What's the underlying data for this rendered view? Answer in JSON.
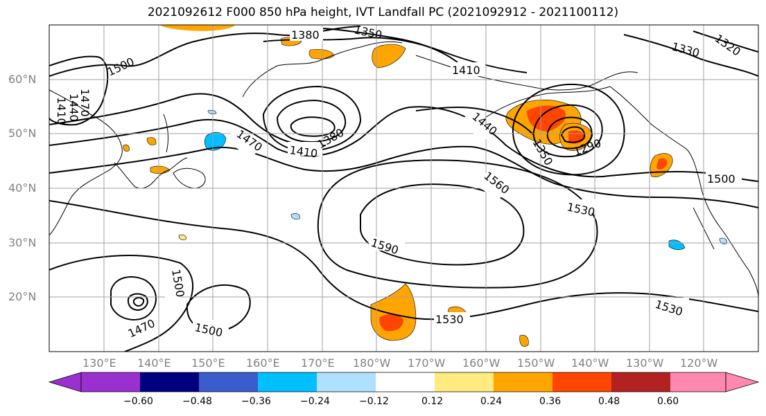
{
  "title": "2021092612 F000 850 hPa height, IVT Landfall PC (2021092912 - 2021100112)",
  "lat_labels": [
    "60°N",
    "50°N",
    "40°N",
    "30°N",
    "20°N"
  ],
  "lon_labels": [
    "130°E",
    "140°E",
    "150°E",
    "160°E",
    "170°E",
    "180°W",
    "170°W",
    "160°W",
    "150°W",
    "140°W",
    "130°W",
    "120°W"
  ],
  "contour_labels": [
    "1380",
    "1350",
    "1330",
    "1320",
    "1410",
    "1500",
    "1470",
    "1440",
    "1410",
    "1470",
    "1410",
    "1380",
    "1440",
    "1350",
    "1290",
    "1560",
    "1530",
    "1500",
    "1590",
    "1500",
    "1470",
    "1500",
    "1530",
    "1530"
  ],
  "colorbar": {
    "ticks": [
      "−0.60",
      "−0.48",
      "−0.36",
      "−0.24",
      "−0.12",
      "0.12",
      "0.24",
      "0.36",
      "0.48",
      "0.60"
    ],
    "colors": [
      "#9b30d0",
      "#00007f",
      "#3a5ccc",
      "#00bfff",
      "#b0e0ff",
      "#ffffff",
      "#ffeb80",
      "#ffa500",
      "#ff4500",
      "#b22222",
      "#ff88b0"
    ],
    "extend": "both"
  },
  "colors": {
    "contour": "#000000",
    "grid": "#a0a0a0",
    "axis_label": "#808080"
  }
}
